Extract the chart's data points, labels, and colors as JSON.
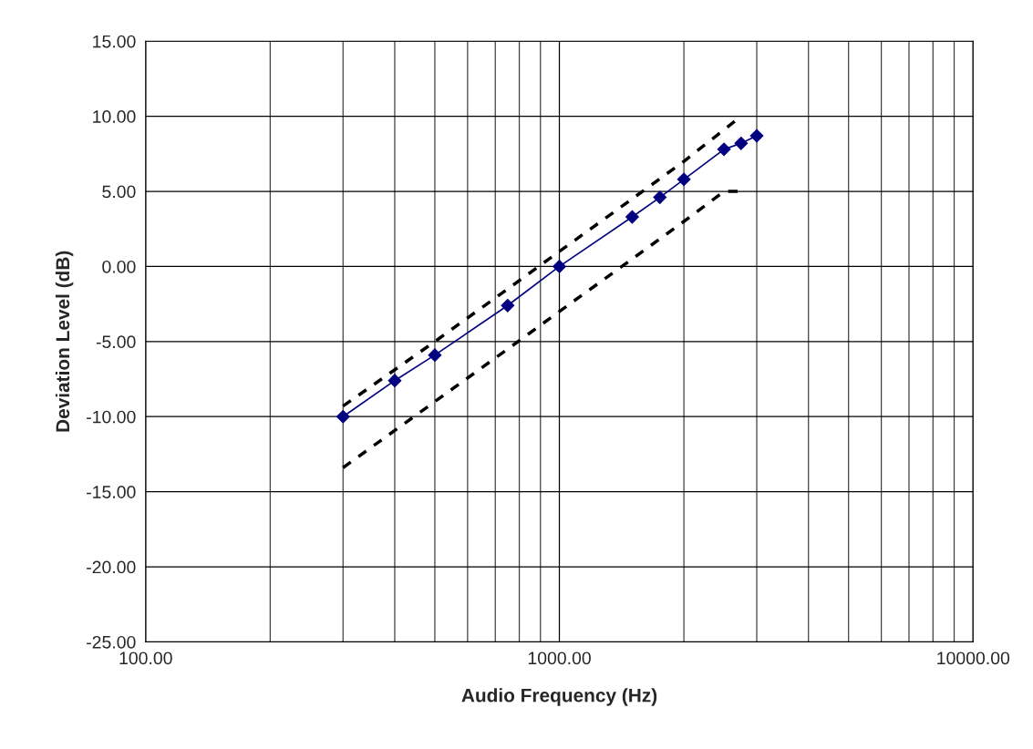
{
  "chart_data": {
    "type": "line",
    "xlabel": "Audio Frequency (Hz)",
    "ylabel": "Deviation Level (dB)",
    "log": "x",
    "xlim": [
      100,
      10000
    ],
    "xticks": [
      {
        "value": 100,
        "label": "100.00"
      },
      {
        "value": 1000,
        "label": "1000.00"
      },
      {
        "value": 10000,
        "label": "10000.00"
      }
    ],
    "ylim": [
      -25,
      15
    ],
    "yticks": [
      {
        "value": -25,
        "label": "-25.00"
      },
      {
        "value": -20,
        "label": "-20.00"
      },
      {
        "value": -15,
        "label": "-15.00"
      },
      {
        "value": -10,
        "label": "-10.00"
      },
      {
        "value": -5,
        "label": "-5.00"
      },
      {
        "value": 0,
        "label": "0.00"
      },
      {
        "value": 5,
        "label": "5.00"
      },
      {
        "value": 10,
        "label": "10.00"
      },
      {
        "value": 15,
        "label": "15.00"
      }
    ],
    "grid": true,
    "series": [
      {
        "color": "#000080",
        "marker": "diamond",
        "line_style": "solid",
        "x": [
          300,
          400,
          500,
          750,
          1000,
          1500,
          1750,
          2000,
          2500,
          2750,
          3000
        ],
        "values": [
          -10.0,
          -7.6,
          -5.9,
          -2.6,
          0.0,
          3.3,
          4.6,
          5.8,
          7.8,
          8.2,
          8.7
        ]
      },
      {
        "color": "#000000",
        "marker": "none",
        "line_style": "dashed",
        "x": [
          300,
          500,
          750,
          1000,
          1500,
          2000,
          2750
        ],
        "values": [
          -9.3,
          -5.0,
          -1.5,
          1.0,
          4.5,
          7.0,
          10.0
        ]
      },
      {
        "color": "#000000",
        "marker": "none",
        "line_style": "dashed",
        "x": [
          300,
          500,
          750,
          1000,
          1500,
          2000,
          2500,
          2750
        ],
        "values": [
          -13.4,
          -9.0,
          -5.5,
          -3.0,
          0.5,
          3.0,
          5.0,
          5.0
        ]
      }
    ]
  }
}
